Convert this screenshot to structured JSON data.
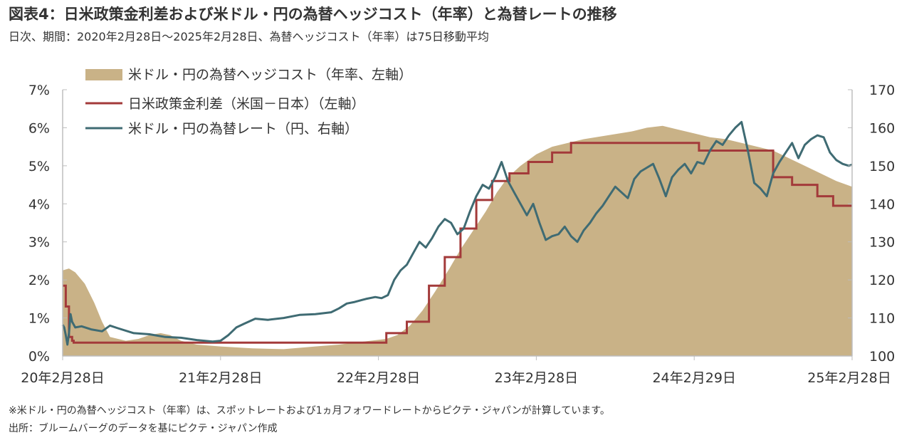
{
  "header": {
    "title": "図表4：日米政策金利差および米ドル・円の為替ヘッジコスト（年率）と為替レートの推移",
    "subtitle": "日次、期間：2020年2月28日～2025年2月28日、為替ヘッジコスト（年率）は75日移動平均"
  },
  "footer": {
    "note": "※米ドル・円の為替ヘッジコスト（年率）は、スポットレートおよび1ヵ月フォワードレートからピクテ・ジャパンが計算しています。",
    "source": "出所：ブルームバーグのデータを基にピクテ・ジャパン作成"
  },
  "chart_data": {
    "type": "area",
    "x_tick_labels": [
      "20年2月28日",
      "21年2月28日",
      "22年2月28日",
      "23年2月28日",
      "24年2月29日",
      "25年2月28日"
    ],
    "x_tick_years": [
      0,
      1,
      2,
      3,
      4,
      5
    ],
    "y_left": {
      "ticks": [
        "0%",
        "1%",
        "2%",
        "3%",
        "4%",
        "5%",
        "6%",
        "7%"
      ],
      "ylim": [
        0,
        7
      ]
    },
    "y_right": {
      "ticks": [
        "100",
        "110",
        "120",
        "130",
        "140",
        "150",
        "160",
        "170"
      ],
      "ylim": [
        100,
        170
      ]
    },
    "legend": [
      "米ドル・円の為替ヘッジコスト（年率、左軸）",
      "日米政策金利差（米国－日本）（左軸）",
      "米ドル・円の為替レート（円、右軸）"
    ],
    "colors": {
      "hedge_cost": "#c9b287",
      "rate_diff": "#a33a3a",
      "usdjpy": "#3f6b73",
      "axis": "#bdbdbd"
    },
    "series": [
      {
        "axis": "left",
        "kind": "area",
        "x": [
          0,
          0.04,
          0.08,
          0.14,
          0.2,
          0.25,
          0.3,
          0.4,
          0.48,
          0.55,
          0.62,
          0.68,
          0.75,
          0.85,
          1.0,
          1.2,
          1.4,
          1.6,
          1.75,
          1.85,
          1.95,
          2.05,
          2.12,
          2.2,
          2.28,
          2.36,
          2.45,
          2.52,
          2.6,
          2.68,
          2.75,
          2.82,
          2.9,
          3.0,
          3.1,
          3.2,
          3.3,
          3.45,
          3.6,
          3.7,
          3.8,
          3.9,
          4.0,
          4.1,
          4.2,
          4.3,
          4.4,
          4.5,
          4.6,
          4.7,
          4.8,
          4.9,
          5.0
        ],
        "values": [
          2.25,
          2.3,
          2.2,
          1.9,
          1.4,
          0.9,
          0.5,
          0.4,
          0.45,
          0.55,
          0.6,
          0.55,
          0.4,
          0.3,
          0.25,
          0.2,
          0.18,
          0.25,
          0.3,
          0.35,
          0.4,
          0.45,
          0.55,
          0.8,
          1.2,
          1.7,
          2.3,
          2.8,
          3.3,
          3.8,
          4.3,
          4.7,
          5.0,
          5.3,
          5.5,
          5.6,
          5.7,
          5.8,
          5.9,
          6.0,
          6.05,
          5.95,
          5.85,
          5.75,
          5.7,
          5.6,
          5.5,
          5.4,
          5.2,
          5.0,
          4.8,
          4.6,
          4.45
        ]
      },
      {
        "axis": "left",
        "kind": "step",
        "x": [
          0,
          0.02,
          0.04,
          0.06,
          0.07,
          2.05,
          2.18,
          2.32,
          2.42,
          2.52,
          2.62,
          2.72,
          2.83,
          2.95,
          3.1,
          3.22,
          3.4,
          4.03,
          4.5,
          4.62,
          4.78,
          4.88,
          5.0
        ],
        "values": [
          1.85,
          1.3,
          0.5,
          0.4,
          0.35,
          0.6,
          0.9,
          1.85,
          2.6,
          3.35,
          4.1,
          4.6,
          4.8,
          5.1,
          5.35,
          5.6,
          5.6,
          5.4,
          4.7,
          4.5,
          4.2,
          3.95,
          3.95
        ]
      },
      {
        "axis": "right",
        "kind": "line",
        "x": [
          0,
          0.01,
          0.02,
          0.03,
          0.04,
          0.05,
          0.06,
          0.08,
          0.12,
          0.18,
          0.25,
          0.3,
          0.35,
          0.45,
          0.55,
          0.65,
          0.75,
          0.85,
          0.95,
          1.0,
          1.05,
          1.1,
          1.15,
          1.22,
          1.3,
          1.4,
          1.5,
          1.6,
          1.7,
          1.75,
          1.8,
          1.85,
          1.92,
          1.98,
          2.02,
          2.06,
          2.1,
          2.14,
          2.18,
          2.22,
          2.26,
          2.3,
          2.34,
          2.38,
          2.42,
          2.46,
          2.5,
          2.54,
          2.58,
          2.62,
          2.66,
          2.7,
          2.74,
          2.78,
          2.82,
          2.86,
          2.9,
          2.94,
          2.98,
          3.02,
          3.06,
          3.1,
          3.14,
          3.18,
          3.22,
          3.26,
          3.3,
          3.34,
          3.38,
          3.42,
          3.46,
          3.5,
          3.54,
          3.58,
          3.62,
          3.66,
          3.7,
          3.74,
          3.78,
          3.82,
          3.86,
          3.9,
          3.94,
          3.98,
          4.02,
          4.06,
          4.1,
          4.14,
          4.18,
          4.22,
          4.26,
          4.3,
          4.34,
          4.38,
          4.42,
          4.46,
          4.5,
          4.54,
          4.58,
          4.62,
          4.66,
          4.7,
          4.74,
          4.78,
          4.82,
          4.86,
          4.9,
          4.94,
          4.98,
          5.0
        ],
        "values": [
          108.2,
          107.5,
          105.5,
          103,
          106,
          111,
          109,
          107.5,
          107.8,
          107,
          106.5,
          108,
          107.3,
          106,
          105.7,
          105,
          104.8,
          104.2,
          103.8,
          104,
          105.5,
          107.5,
          108.5,
          109.8,
          109.5,
          110,
          110.8,
          111,
          111.5,
          112.5,
          113.8,
          114.2,
          115,
          115.5,
          115.2,
          116,
          120,
          122.5,
          124,
          127,
          130,
          128.5,
          131,
          134,
          136,
          135,
          132,
          133.5,
          138,
          142,
          145,
          144,
          147,
          151,
          146,
          143,
          140,
          137,
          140,
          135,
          130.5,
          131.5,
          132,
          134,
          131.5,
          130,
          133,
          135,
          137.5,
          139.5,
          142,
          144.5,
          143,
          141.5,
          146.5,
          148.5,
          149.5,
          150.5,
          146.5,
          142,
          147,
          149,
          150.5,
          148,
          151,
          150.5,
          154,
          156.5,
          155.5,
          158,
          160,
          161.5,
          154,
          145.5,
          144,
          142,
          148,
          151,
          153.5,
          156,
          152,
          155.5,
          157,
          158,
          157.5,
          153.5,
          151.5,
          150.5,
          150,
          150.3
        ]
      }
    ]
  }
}
